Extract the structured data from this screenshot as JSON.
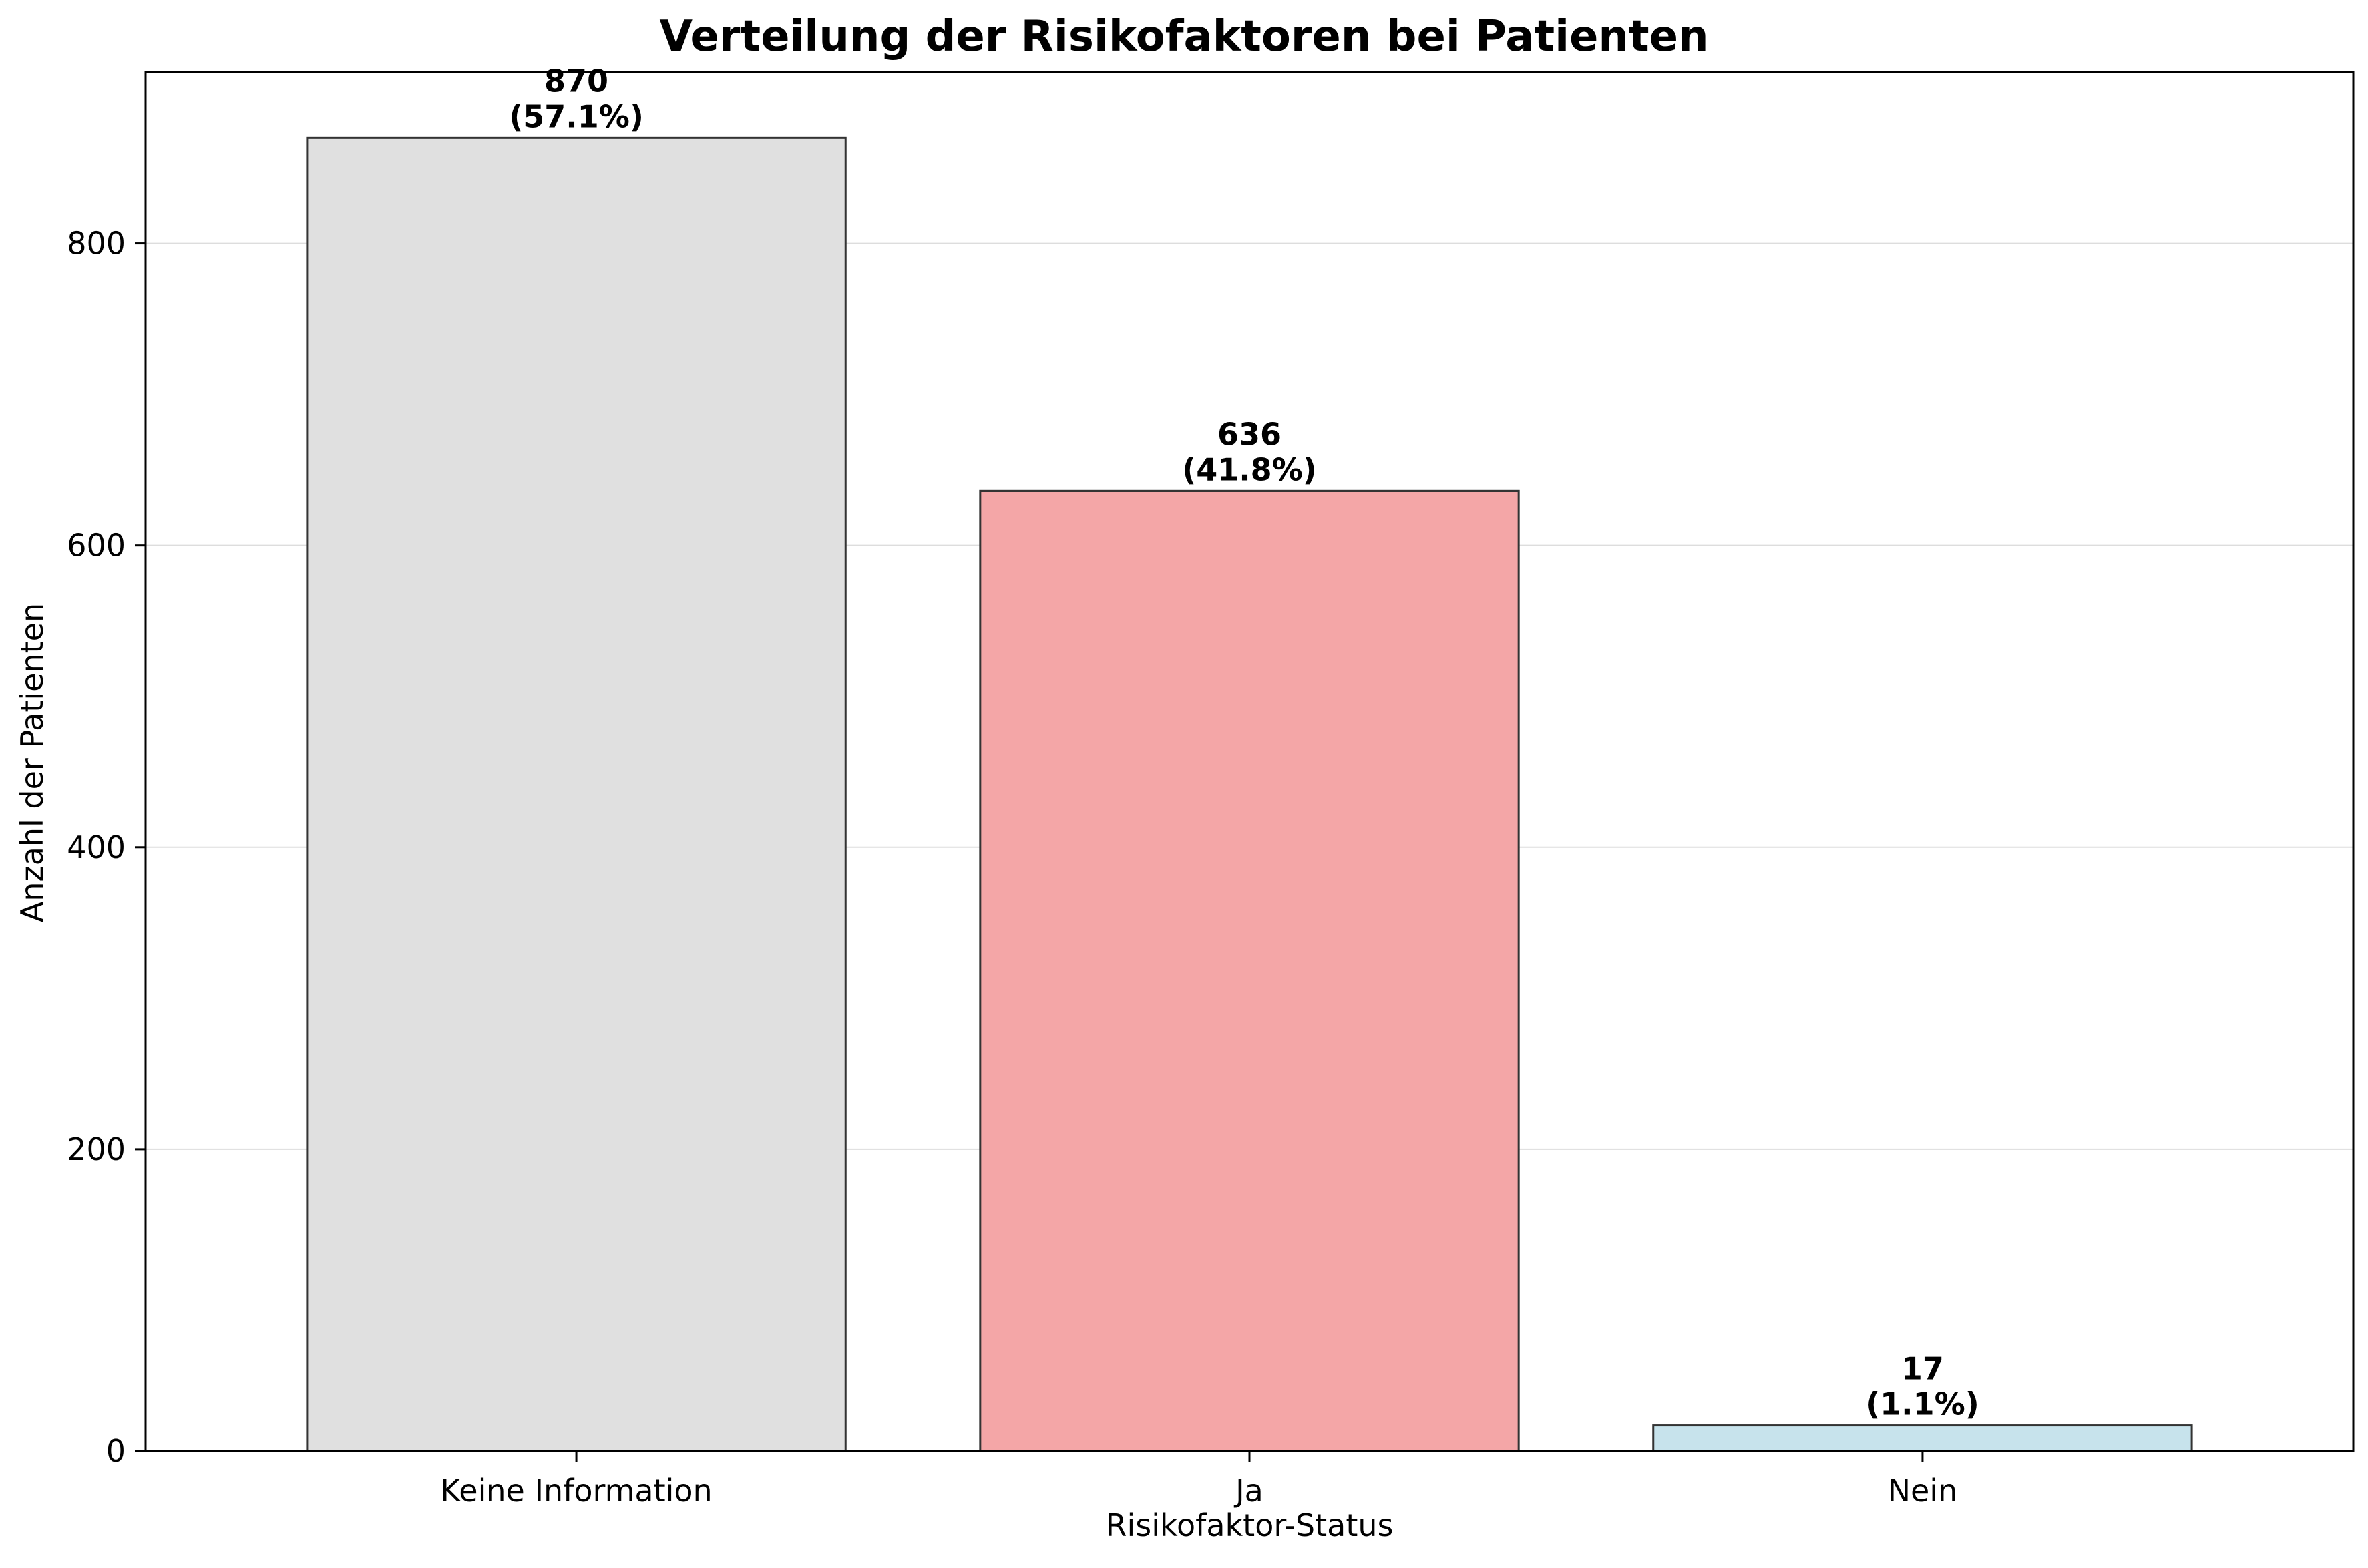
{
  "chart_data": {
    "type": "bar",
    "title": "Verteilung der Risikofaktoren bei Patienten",
    "xlabel": "Risikofaktor-Status",
    "ylabel": "Anzahl der Patienten",
    "categories": [
      "Keine Information",
      "Ja",
      "Nein"
    ],
    "values": [
      870,
      636,
      17
    ],
    "value_labels": [
      "870",
      "636",
      "17"
    ],
    "percent_labels": [
      "(57.1%)",
      "(41.8%)",
      "(1.1%)"
    ],
    "colors": [
      "#e0e0e0",
      "#f4a6a7",
      "#c7e3ec"
    ],
    "edge_color": "#333333",
    "ylim": [
      0,
      913.5
    ],
    "yticks": [
      0,
      200,
      400,
      600,
      800
    ],
    "grid": "horizontal",
    "legend": "none"
  }
}
